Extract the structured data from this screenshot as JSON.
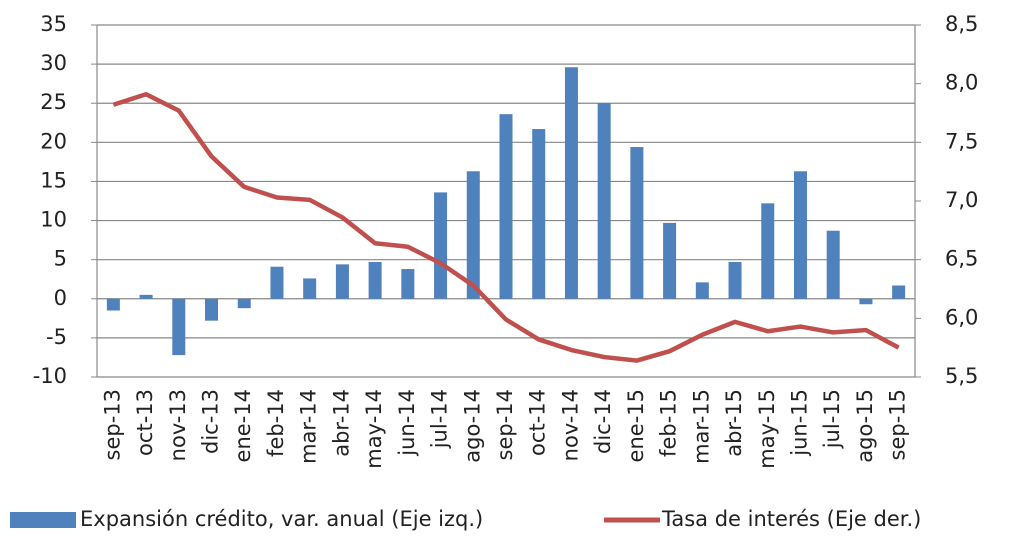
{
  "chart_data": {
    "type": "combo",
    "categories": [
      "sep-13",
      "oct-13",
      "nov-13",
      "dic-13",
      "ene-14",
      "feb-14",
      "mar-14",
      "abr-14",
      "may-14",
      "jun-14",
      "jul-14",
      "ago-14",
      "sep-14",
      "oct-14",
      "nov-14",
      "dic-14",
      "ene-15",
      "feb-15",
      "mar-15",
      "abr-15",
      "may-15",
      "jun-15",
      "jul-15",
      "ago-15",
      "sep-15"
    ],
    "series": [
      {
        "name": "Expansión crédito, var. anual (Eje izq.)",
        "type": "bar",
        "color": "#4f81bd",
        "values": [
          -1.5,
          0.5,
          -7.2,
          -2.8,
          -1.2,
          4.1,
          2.6,
          4.4,
          4.7,
          3.8,
          13.6,
          16.3,
          23.6,
          21.7,
          29.6,
          25.0,
          19.4,
          9.7,
          2.1,
          4.7,
          12.2,
          16.3,
          8.7,
          -0.7,
          1.7
        ]
      },
      {
        "name": "Tasa de interés (Eje der.)",
        "type": "line",
        "axis": "y2",
        "color": "#c0504d",
        "values": [
          7.82,
          7.91,
          7.77,
          7.38,
          7.12,
          7.03,
          7.01,
          6.86,
          6.64,
          6.61,
          6.47,
          6.28,
          5.99,
          5.82,
          5.73,
          5.67,
          5.64,
          5.72,
          5.86,
          5.97,
          5.89,
          5.93,
          5.88,
          5.9,
          5.75
        ]
      }
    ],
    "ylim": [
      -10,
      35
    ],
    "yticks": [
      -10,
      -5,
      0,
      5,
      10,
      15,
      20,
      25,
      30,
      35
    ],
    "y2lim": [
      5.5,
      8.5
    ],
    "y2ticks": [
      {
        "value": 5.5,
        "label": "5,5"
      },
      {
        "value": 6,
        "label": "6,0"
      },
      {
        "value": 6.5,
        "label": "6,5"
      },
      {
        "value": 7,
        "label": "7,0"
      },
      {
        "value": 7.5,
        "label": "7,5"
      },
      {
        "value": 8,
        "label": "8,0"
      },
      {
        "value": 8.5,
        "label": "8,5"
      }
    ],
    "grid": true,
    "legend": "bottom"
  }
}
